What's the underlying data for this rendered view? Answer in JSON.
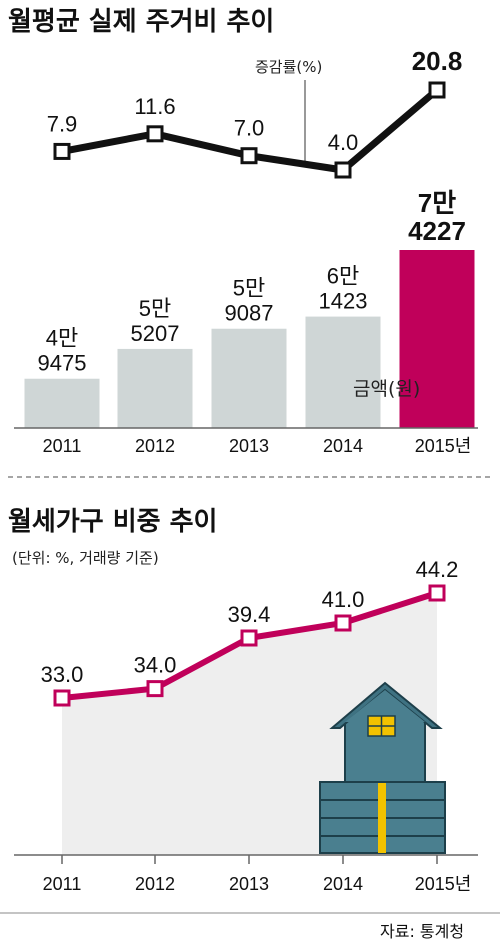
{
  "chart_data": [
    {
      "type": "line",
      "title": "월평균 실제 주거비 추이",
      "series_label": "증감률(%)",
      "categories": [
        "2011",
        "2012",
        "2013",
        "2014",
        "2015"
      ],
      "values": [
        7.9,
        11.6,
        7.0,
        4.0,
        20.8
      ],
      "value_labels": [
        "7.9",
        "11.6",
        "7.0",
        "4.0",
        "20.8"
      ],
      "line_color": "#111111"
    },
    {
      "type": "bar",
      "series_label": "금액(원)",
      "categories": [
        "2011",
        "2012",
        "2013",
        "2014",
        "2015년"
      ],
      "values": [
        49475,
        55207,
        59087,
        61423,
        74227
      ],
      "value_labels": [
        [
          "4만",
          "9475"
        ],
        [
          "5만",
          "5207"
        ],
        [
          "5만",
          "9087"
        ],
        [
          "6만",
          "1423"
        ],
        [
          "7만",
          "4227"
        ]
      ],
      "bar_color": "#cfd6d6",
      "highlight_color": "#c0005a"
    },
    {
      "type": "area",
      "title": "월세가구 비중 추이",
      "subtitle": "(단위: %, 거래량 기준)",
      "categories": [
        "2011",
        "2012",
        "2013",
        "2014",
        "2015년"
      ],
      "values": [
        33.0,
        34.0,
        39.4,
        41.0,
        44.2
      ],
      "value_labels": [
        "33.0",
        "34.0",
        "39.4",
        "41.0",
        "44.2"
      ],
      "line_color": "#c0005a",
      "fill_color": "#eeeeee"
    }
  ],
  "source": "자료: 통계청",
  "icons": [
    "house-icon"
  ]
}
